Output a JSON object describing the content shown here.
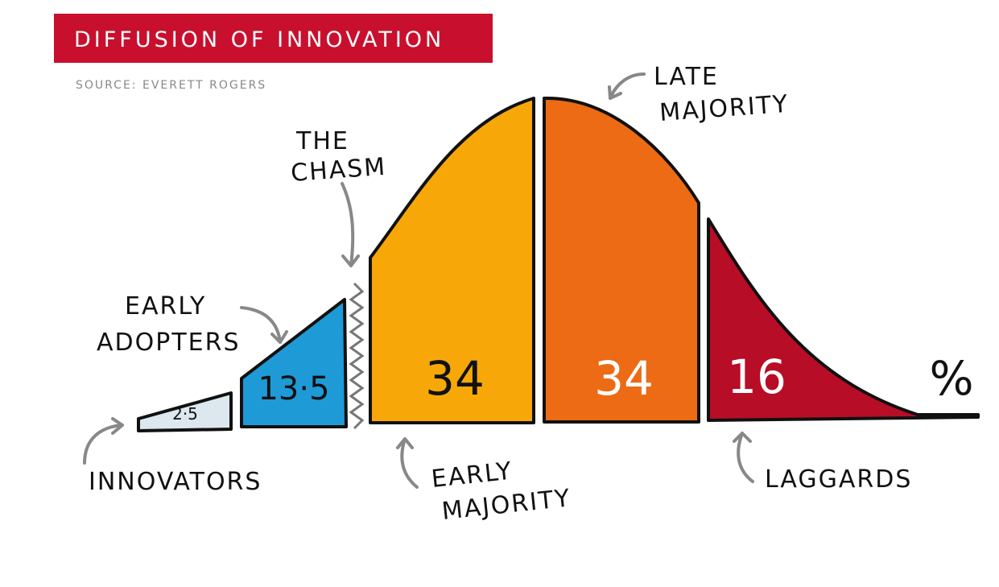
{
  "header": {
    "title": "DIFFUSION OF INNOVATION",
    "source": "SOURCE: EVERETT ROGERS"
  },
  "segments": [
    {
      "label": [
        "INNOVATORS"
      ],
      "value": "2·5"
    },
    {
      "label": [
        "EARLY",
        "ADOPTERS"
      ],
      "value": "13·5"
    },
    {
      "label": [
        "EARLY",
        "MAJORITY"
      ],
      "value": "34"
    },
    {
      "label": [
        "LATE",
        "MAJORITY"
      ],
      "value": "34"
    },
    {
      "label": [
        "LAGGARDS"
      ],
      "value": "16"
    }
  ],
  "chasm": [
    "THE",
    "CHASM"
  ],
  "unit": "%"
}
